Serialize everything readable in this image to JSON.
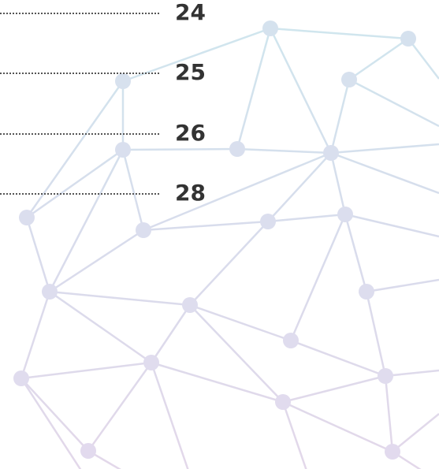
{
  "toc": {
    "entries": [
      {
        "page": "24"
      },
      {
        "page": "25"
      },
      {
        "page": "26"
      },
      {
        "page": "28"
      }
    ]
  }
}
